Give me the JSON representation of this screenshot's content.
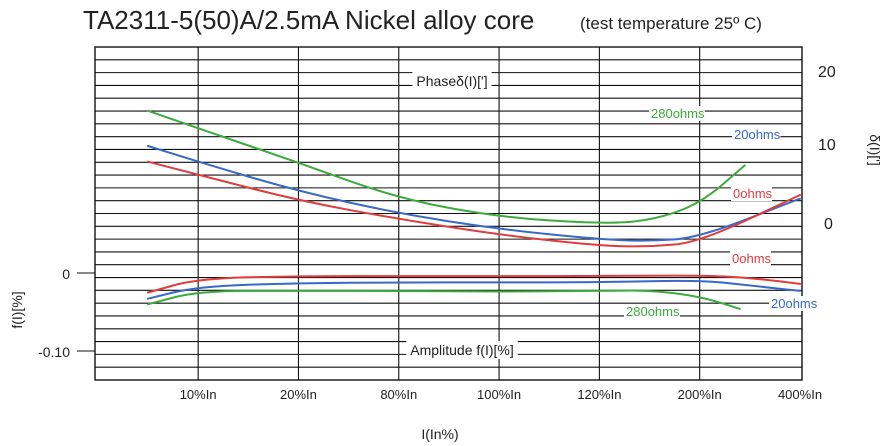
{
  "chart_data": {
    "type": "line",
    "title": "TA2311-5(50)A/2.5mA  Nickel alloy core",
    "subtitle": "(test temperature 25º C)",
    "xlabel": "I(In%)",
    "categories": [
      "10%In",
      "20%In",
      "80%In",
      "100%In",
      "120%In",
      "200%In",
      "400%In"
    ],
    "x_range": [
      0.5,
      7
    ],
    "phase": {
      "panel_label": "Phaseδ(I)[']",
      "ylabel": "δ(I)[']",
      "yticks": [
        "20",
        "10",
        "0"
      ],
      "ylim": [
        -9,
        27
      ],
      "series": [
        {
          "label": "280ohms",
          "color": "#3daa3d",
          "x": [
            0.5,
            1.0,
            2.0,
            3.0,
            4.0,
            5.0,
            5.5,
            6.0,
            6.45
          ],
          "values": [
            20.1,
            18.2,
            14.5,
            10.6,
            8.6,
            7.9,
            8.2,
            10.0,
            14.2
          ]
        },
        {
          "label": "20ohms",
          "color": "#3868c8",
          "x": [
            0.5,
            1.0,
            2.0,
            3.0,
            4.0,
            5.0,
            5.5,
            6.0,
            7.0
          ],
          "values": [
            16.3,
            14.6,
            11.4,
            9.0,
            7.3,
            6.2,
            6.0,
            6.4,
            10.6
          ]
        },
        {
          "label": "0ohms",
          "color": "#e03c3c",
          "x": [
            0.5,
            1.0,
            2.0,
            3.0,
            4.0,
            5.0,
            5.5,
            6.0,
            7.0
          ],
          "values": [
            14.6,
            13.2,
            10.4,
            8.4,
            6.7,
            5.5,
            5.4,
            5.9,
            11.0
          ]
        }
      ]
    },
    "amplitude": {
      "panel_label": "Amplitude f(I)[%]",
      "ylabel": "f(I)[%]",
      "yticks": [
        "0",
        "-0.10"
      ],
      "ylim": [
        -0.16,
        0.1
      ],
      "series": [
        {
          "label": "0ohms",
          "color": "#e03c3c",
          "x": [
            0.5,
            1.0,
            2.0,
            3.0,
            4.0,
            5.0,
            6.0,
            6.5,
            7.0
          ],
          "values": [
            -0.025,
            -0.007,
            -0.004,
            -0.004,
            -0.004,
            -0.004,
            -0.003,
            -0.006,
            -0.014
          ]
        },
        {
          "label": "20ohms",
          "color": "#3868c8",
          "x": [
            0.5,
            1.0,
            2.0,
            3.0,
            4.0,
            5.0,
            6.0,
            6.5,
            7.0
          ],
          "values": [
            -0.033,
            -0.017,
            -0.013,
            -0.012,
            -0.012,
            -0.012,
            -0.009,
            -0.016,
            -0.023
          ]
        },
        {
          "label": "280ohms",
          "color": "#3daa3d",
          "x": [
            0.5,
            1.0,
            2.0,
            3.0,
            4.0,
            5.0,
            5.5,
            6.0,
            6.4
          ],
          "values": [
            -0.04,
            -0.023,
            -0.023,
            -0.023,
            -0.024,
            -0.023,
            -0.022,
            -0.03,
            -0.046
          ]
        }
      ]
    }
  }
}
